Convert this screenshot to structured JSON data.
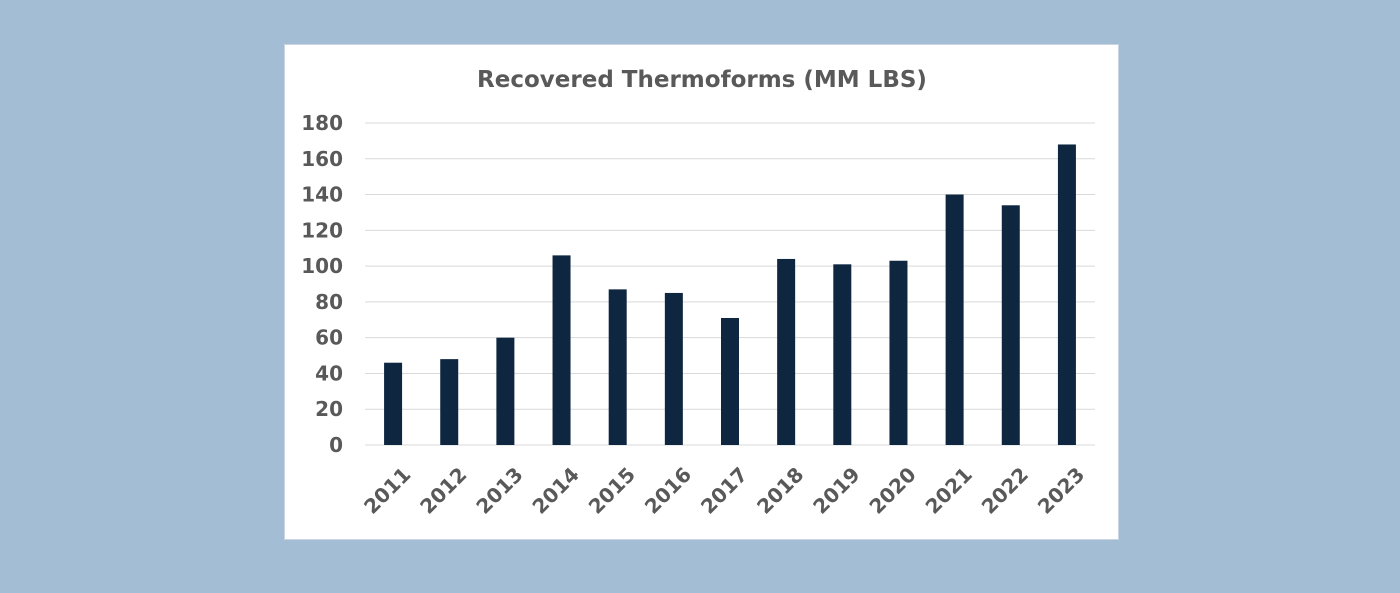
{
  "page": {
    "background_color": "#a3bdd5"
  },
  "chart_data": {
    "type": "bar",
    "title": "Recovered Thermoforms (MM LBS)",
    "xlabel": "",
    "ylabel": "",
    "categories": [
      "2011",
      "2012",
      "2013",
      "2014",
      "2015",
      "2016",
      "2017",
      "2018",
      "2019",
      "2020",
      "2021",
      "2022",
      "2023"
    ],
    "values": [
      46,
      48,
      60,
      106,
      87,
      85,
      71,
      104,
      101,
      103,
      140,
      134,
      168
    ],
    "ylim": [
      0,
      180
    ],
    "yticks": [
      0,
      20,
      40,
      60,
      80,
      100,
      120,
      140,
      160,
      180
    ],
    "grid": true,
    "legend": "none",
    "bar_color": "#0e2640",
    "grid_color": "#d9d9d9",
    "text_color": "#595959"
  }
}
